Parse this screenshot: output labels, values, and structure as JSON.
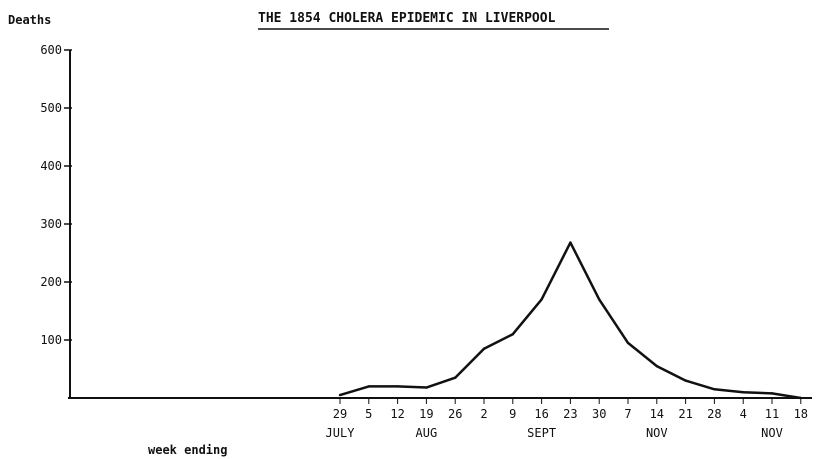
{
  "chart_data": {
    "type": "line",
    "title": "THE 1854 CHOLERA EPIDEMIC IN LIVERPOOL",
    "ylabel": "Deaths",
    "xlabel": "week ending",
    "ylim": [
      0,
      600
    ],
    "yticks": [
      "600",
      "500",
      "400",
      "300",
      "200",
      "100"
    ],
    "x": [
      "29",
      "5",
      "12",
      "19",
      "26",
      "2",
      "9",
      "16",
      "23",
      "30",
      "7",
      "14",
      "21",
      "28",
      "4",
      "11",
      "18"
    ],
    "months": [
      {
        "label": "JULY",
        "under": 0
      },
      {
        "label": "AUG",
        "under": 3
      },
      {
        "label": "SEPT",
        "under": 7
      },
      {
        "label": "NOV",
        "under": 11
      },
      {
        "label": "NOV",
        "under": 15
      }
    ],
    "series": [
      {
        "values": [
          5,
          20,
          20,
          18,
          35,
          85,
          110,
          170,
          268,
          170,
          95,
          55,
          30,
          15,
          10,
          8,
          0
        ],
        "color": "#111111"
      }
    ],
    "grid": false,
    "legend": "none"
  }
}
